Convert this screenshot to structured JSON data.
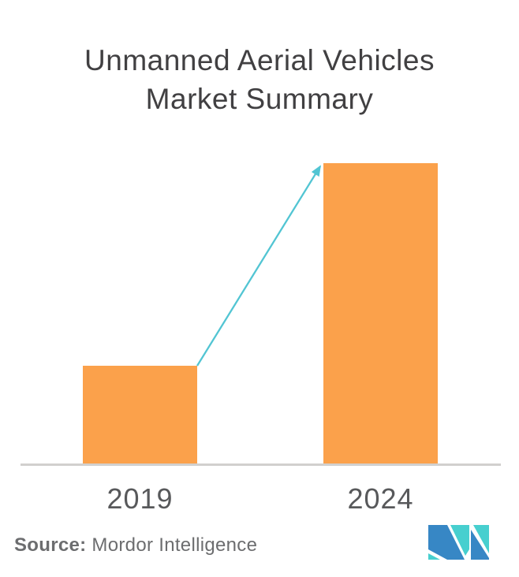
{
  "title": "Unmanned Aerial Vehicles Market Summary",
  "source": {
    "label": "Source:",
    "name": " Mordor Intelligence"
  },
  "chart_data": {
    "type": "bar",
    "title": "Unmanned Aerial Vehicles Market Summary",
    "categories": [
      "2019",
      "2024"
    ],
    "values_relative": [
      33,
      100
    ],
    "xlabel": "",
    "ylabel": "",
    "ylim": [
      0,
      100
    ],
    "value_axis_shown": false,
    "grid": false,
    "legend": "none",
    "bar_color": "#FBA14B",
    "axis_line_color": "#D1D0CE",
    "tick_label_color": "#58595B",
    "trend_arrow": {
      "from_category": "2019",
      "to_category": "2024",
      "direction": "up",
      "color": "#52C5D3"
    }
  },
  "logo": {
    "alt": "Mordor Intelligence logo",
    "blue": "#3787C5",
    "teal": "#47CFCF"
  }
}
